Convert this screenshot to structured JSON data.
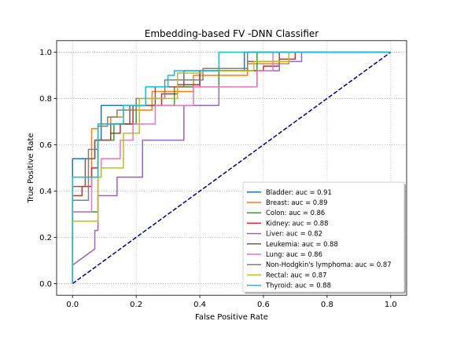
{
  "chart_data": {
    "type": "line",
    "title": "Embedding-based FV -DNN Classifier",
    "xlabel": "False Positive Rate",
    "ylabel": "True Positive Rate",
    "xlim": [
      -0.05,
      1.05
    ],
    "ylim": [
      -0.05,
      1.05
    ],
    "xticks": [
      "0.0",
      "0.2",
      "0.4",
      "0.6",
      "0.8",
      "1.0"
    ],
    "yticks": [
      "0.0",
      "0.2",
      "0.4",
      "0.6",
      "0.8",
      "1.0"
    ],
    "grid": true,
    "legend_position": "lower-right",
    "reference_line": {
      "x": [
        0,
        1
      ],
      "y": [
        0,
        1
      ],
      "color": "#000080",
      "style": "dashed"
    },
    "series": [
      {
        "name": "Bladder: auc = 0.91",
        "color": "#1f77b4",
        "x": [
          0,
          0,
          0.07,
          0.07,
          0.09,
          0.09,
          0.23,
          0.23,
          0.4,
          0.4,
          0.54,
          0.54,
          1.0
        ],
        "y": [
          0,
          0.54,
          0.54,
          0.62,
          0.62,
          0.77,
          0.77,
          0.85,
          0.85,
          0.92,
          0.92,
          1.0,
          1.0
        ]
      },
      {
        "name": "Breast: auc = 0.89",
        "color": "#ff7f0e",
        "x": [
          0,
          0,
          0.06,
          0.06,
          0.08,
          0.08,
          0.12,
          0.12,
          0.16,
          0.16,
          0.25,
          0.25,
          0.38,
          0.38,
          0.55,
          0.55,
          0.68,
          0.68,
          1.0
        ],
        "y": [
          0,
          0.46,
          0.46,
          0.67,
          0.67,
          0.69,
          0.69,
          0.72,
          0.72,
          0.75,
          0.75,
          0.83,
          0.83,
          0.9,
          0.9,
          0.95,
          0.95,
          1.0,
          1.0
        ]
      },
      {
        "name": "Colon: auc = 0.86",
        "color": "#2ca02c",
        "x": [
          0,
          0,
          0.08,
          0.08,
          0.13,
          0.13,
          0.2,
          0.2,
          0.32,
          0.32,
          0.46,
          0.46,
          0.58,
          0.58,
          1.0
        ],
        "y": [
          0,
          0.31,
          0.31,
          0.62,
          0.62,
          0.69,
          0.69,
          0.77,
          0.77,
          0.85,
          0.85,
          0.92,
          0.92,
          1.0,
          1.0
        ]
      },
      {
        "name": "Kidney: auc = 0.88",
        "color": "#d62728",
        "x": [
          0,
          0,
          0.03,
          0.03,
          0.06,
          0.06,
          0.08,
          0.08,
          0.12,
          0.12,
          0.15,
          0.15,
          0.19,
          0.19,
          0.28,
          0.28,
          0.33,
          0.33,
          0.4,
          0.4,
          0.6,
          0.6,
          0.65,
          0.65,
          0.7,
          0.7,
          1.0
        ],
        "y": [
          0,
          0.38,
          0.38,
          0.42,
          0.42,
          0.5,
          0.5,
          0.62,
          0.62,
          0.65,
          0.65,
          0.69,
          0.69,
          0.77,
          0.77,
          0.82,
          0.82,
          0.86,
          0.86,
          0.92,
          0.92,
          0.94,
          0.94,
          0.97,
          0.97,
          1.0,
          1.0
        ]
      },
      {
        "name": "Liver: auc = 0.82",
        "color": "#9467bd",
        "x": [
          0,
          0,
          0.07,
          0.07,
          0.08,
          0.08,
          0.14,
          0.14,
          0.22,
          0.22,
          0.35,
          0.35,
          0.46,
          0.46,
          0.58,
          0.58,
          0.65,
          0.65,
          0.72,
          0.72,
          1.0
        ],
        "y": [
          0,
          0.08,
          0.15,
          0.23,
          0.23,
          0.38,
          0.38,
          0.46,
          0.46,
          0.62,
          0.62,
          0.77,
          0.77,
          0.85,
          0.85,
          0.92,
          0.92,
          0.96,
          0.96,
          1.0,
          1.0
        ]
      },
      {
        "name": "Leukemia: auc = 0.88",
        "color": "#8c564b",
        "x": [
          0,
          0,
          0.04,
          0.04,
          0.07,
          0.07,
          0.12,
          0.12,
          0.18,
          0.18,
          0.26,
          0.26,
          0.35,
          0.35,
          0.55,
          0.55,
          0.65,
          0.65,
          1.0
        ],
        "y": [
          0,
          0.42,
          0.42,
          0.54,
          0.54,
          0.62,
          0.62,
          0.69,
          0.69,
          0.77,
          0.77,
          0.85,
          0.85,
          0.92,
          0.92,
          0.96,
          0.96,
          1.0,
          1.0
        ]
      },
      {
        "name": "Lung: auc = 0.86",
        "color": "#e377c2",
        "x": [
          0,
          0,
          0.06,
          0.06,
          0.09,
          0.09,
          0.15,
          0.15,
          0.19,
          0.19,
          0.26,
          0.26,
          0.38,
          0.38,
          0.58,
          0.58,
          0.63,
          0.63,
          1.0
        ],
        "y": [
          0,
          0.31,
          0.31,
          0.46,
          0.46,
          0.54,
          0.54,
          0.62,
          0.62,
          0.69,
          0.69,
          0.77,
          0.77,
          0.85,
          0.85,
          0.92,
          0.92,
          1.0,
          1.0
        ]
      },
      {
        "name": "Non-Hodgkin's lymphoma: auc = 0.87",
        "color": "#7f7f7f",
        "x": [
          0,
          0,
          0.05,
          0.05,
          0.08,
          0.08,
          0.11,
          0.11,
          0.14,
          0.14,
          0.2,
          0.2,
          0.29,
          0.29,
          0.41,
          0.41,
          0.55,
          0.55,
          1.0
        ],
        "y": [
          0,
          0.36,
          0.36,
          0.58,
          0.58,
          0.68,
          0.68,
          0.72,
          0.72,
          0.75,
          0.75,
          0.8,
          0.8,
          0.88,
          0.88,
          0.93,
          0.93,
          1.0,
          1.0
        ]
      },
      {
        "name": "Rectal: auc = 0.87",
        "color": "#bcbd22",
        "x": [
          0,
          0,
          0.08,
          0.08,
          0.09,
          0.09,
          0.16,
          0.16,
          0.21,
          0.21,
          0.33,
          0.33,
          0.41,
          0.41,
          0.57,
          0.57,
          0.68,
          0.68,
          1.0
        ],
        "y": [
          0,
          0.27,
          0.27,
          0.46,
          0.46,
          0.5,
          0.5,
          0.65,
          0.65,
          0.8,
          0.8,
          0.91,
          0.91,
          0.92,
          0.92,
          0.96,
          0.96,
          1.0,
          1.0
        ]
      },
      {
        "name": "Thyroid: auc = 0.88",
        "color": "#17becf",
        "x": [
          0,
          0,
          0.08,
          0.08,
          0.16,
          0.16,
          0.23,
          0.23,
          0.3,
          0.3,
          0.32,
          0.32,
          0.46,
          0.46,
          1.0
        ],
        "y": [
          0,
          0.46,
          0.46,
          0.69,
          0.69,
          0.77,
          0.77,
          0.85,
          0.85,
          0.9,
          0.9,
          0.92,
          0.92,
          1.0,
          1.0
        ]
      }
    ]
  }
}
